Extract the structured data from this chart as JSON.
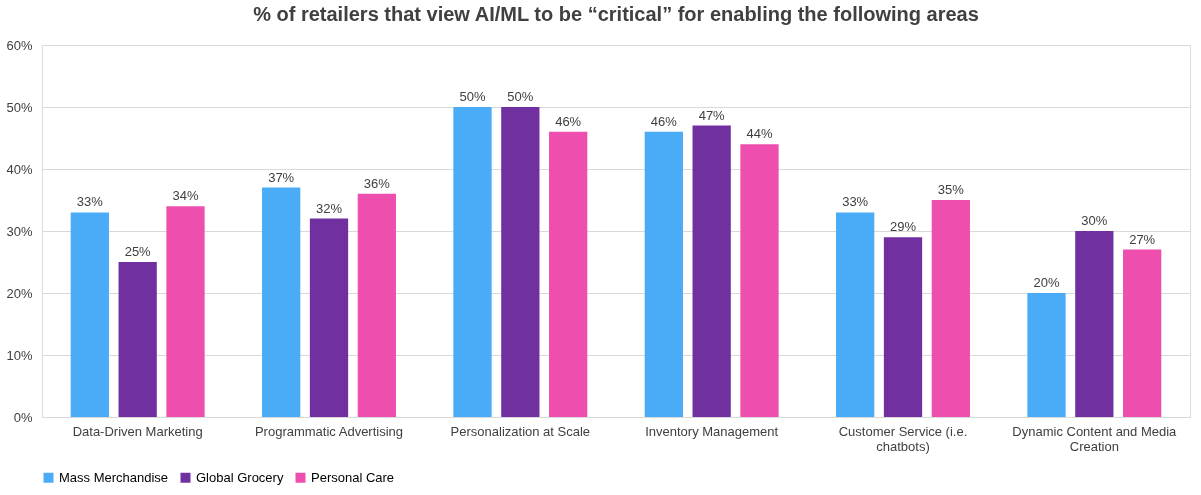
{
  "chart_data": {
    "type": "bar",
    "title": "% of retailers that view AI/ML to be “critical” for enabling the following areas",
    "categories": [
      "Data-Driven Marketing",
      "Programmatic Advertising",
      "Personalization at Scale",
      "Inventory Management",
      "Customer Service (i.e. chatbots)",
      "Dynamic Content and Media Creation"
    ],
    "series": [
      {
        "name": "Mass Merchandise",
        "color": "#4aabf6",
        "values": [
          33,
          37,
          50,
          46,
          33,
          20
        ],
        "value_labels": [
          "33%",
          "37%",
          "50%",
          "46%",
          "33%",
          "20%"
        ]
      },
      {
        "name": "Global Grocery",
        "color": "#7030a0",
        "values": [
          25,
          32,
          50,
          47,
          29,
          30
        ],
        "value_labels": [
          "25%",
          "32%",
          "50%",
          "47%",
          "29%",
          "30%"
        ]
      },
      {
        "name": "Personal Care",
        "color": "#ee4fae",
        "values": [
          34,
          36,
          46,
          44,
          35,
          27
        ],
        "value_labels": [
          "34%",
          "36%",
          "46%",
          "44%",
          "35%",
          "27%"
        ]
      }
    ],
    "ylim": [
      0,
      60
    ],
    "yticks": [
      {
        "value": 0,
        "label": "0%"
      },
      {
        "value": 10,
        "label": "10%"
      },
      {
        "value": 20,
        "label": "20%"
      },
      {
        "value": 30,
        "label": "30%"
      },
      {
        "value": 40,
        "label": "40%"
      },
      {
        "value": 50,
        "label": "50%"
      },
      {
        "value": 60,
        "label": "60%"
      }
    ],
    "grid": "y",
    "legend": "bottom"
  }
}
